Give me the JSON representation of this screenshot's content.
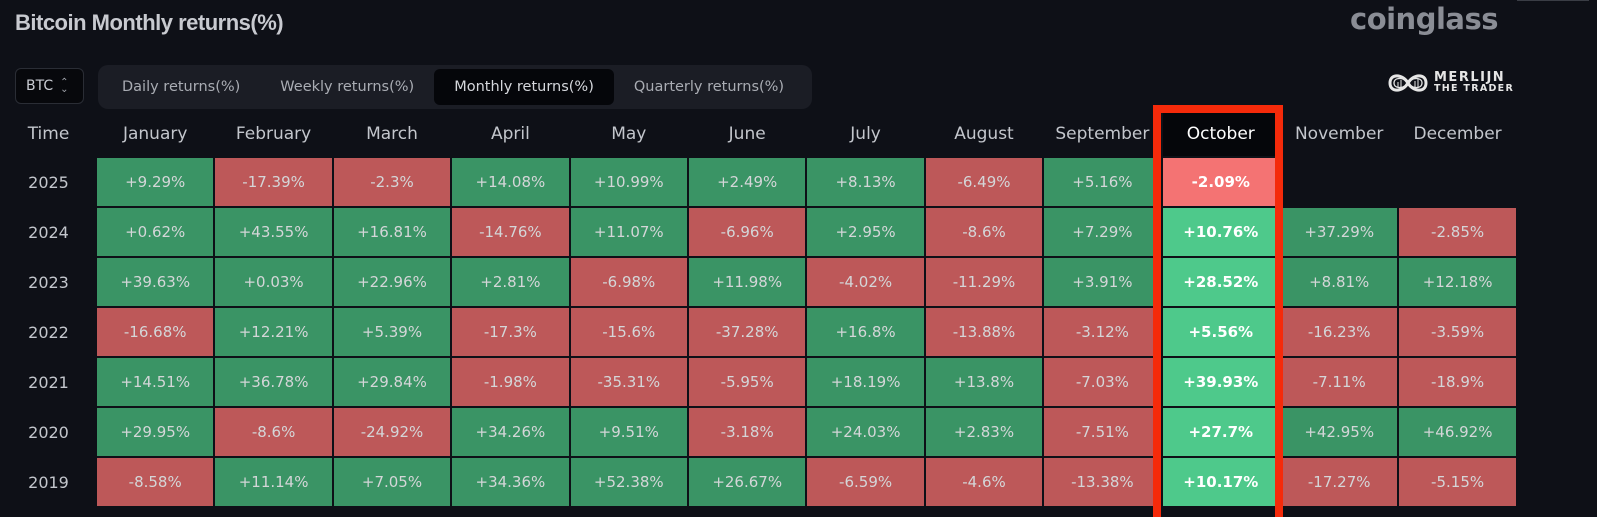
{
  "header": {
    "title": "Bitcoin Monthly returns(%)",
    "brand": "coinglass",
    "watermark_line1": "MERLIJN",
    "watermark_line2": "THE TRADER"
  },
  "controls": {
    "coin_select": {
      "value": "BTC",
      "icon": "chevron-updown-icon"
    },
    "tabs": [
      {
        "label": "Daily returns(%)",
        "active": false
      },
      {
        "label": "Weekly returns(%)",
        "active": false
      },
      {
        "label": "Monthly returns(%)",
        "active": true
      },
      {
        "label": "Quarterly returns(%)",
        "active": false
      }
    ]
  },
  "colors": {
    "positive": "#3a9465",
    "negative": "#bd5859",
    "highlight_positive": "#4ec98b",
    "highlight_negative": "#f47373",
    "highlight_border": "#f52a0a"
  },
  "highlighted_column": "October",
  "chart_data": {
    "type": "heatmap",
    "title": "Bitcoin Monthly returns(%)",
    "row_header": "Time",
    "columns": [
      "January",
      "February",
      "March",
      "April",
      "May",
      "June",
      "July",
      "August",
      "September",
      "October",
      "November",
      "December"
    ],
    "rows": [
      {
        "year": "2025",
        "values": [
          "+9.29%",
          "-17.39%",
          "-2.3%",
          "+14.08%",
          "+10.99%",
          "+2.49%",
          "+8.13%",
          "-6.49%",
          "+5.16%",
          "-2.09%",
          null,
          null
        ]
      },
      {
        "year": "2024",
        "values": [
          "+0.62%",
          "+43.55%",
          "+16.81%",
          "-14.76%",
          "+11.07%",
          "-6.96%",
          "+2.95%",
          "-8.6%",
          "+7.29%",
          "+10.76%",
          "+37.29%",
          "-2.85%"
        ]
      },
      {
        "year": "2023",
        "values": [
          "+39.63%",
          "+0.03%",
          "+22.96%",
          "+2.81%",
          "-6.98%",
          "+11.98%",
          "-4.02%",
          "-11.29%",
          "+3.91%",
          "+28.52%",
          "+8.81%",
          "+12.18%"
        ]
      },
      {
        "year": "2022",
        "values": [
          "-16.68%",
          "+12.21%",
          "+5.39%",
          "-17.3%",
          "-15.6%",
          "-37.28%",
          "+16.8%",
          "-13.88%",
          "-3.12%",
          "+5.56%",
          "-16.23%",
          "-3.59%"
        ]
      },
      {
        "year": "2021",
        "values": [
          "+14.51%",
          "+36.78%",
          "+29.84%",
          "-1.98%",
          "-35.31%",
          "-5.95%",
          "+18.19%",
          "+13.8%",
          "-7.03%",
          "+39.93%",
          "-7.11%",
          "-18.9%"
        ]
      },
      {
        "year": "2020",
        "values": [
          "+29.95%",
          "-8.6%",
          "-24.92%",
          "+34.26%",
          "+9.51%",
          "-3.18%",
          "+24.03%",
          "+2.83%",
          "-7.51%",
          "+27.7%",
          "+42.95%",
          "+46.92%"
        ]
      },
      {
        "year": "2019",
        "values": [
          "-8.58%",
          "+11.14%",
          "+7.05%",
          "+34.36%",
          "+52.38%",
          "+26.67%",
          "-6.59%",
          "-4.6%",
          "-13.38%",
          "+10.17%",
          "-17.27%",
          "-5.15%"
        ]
      }
    ]
  }
}
